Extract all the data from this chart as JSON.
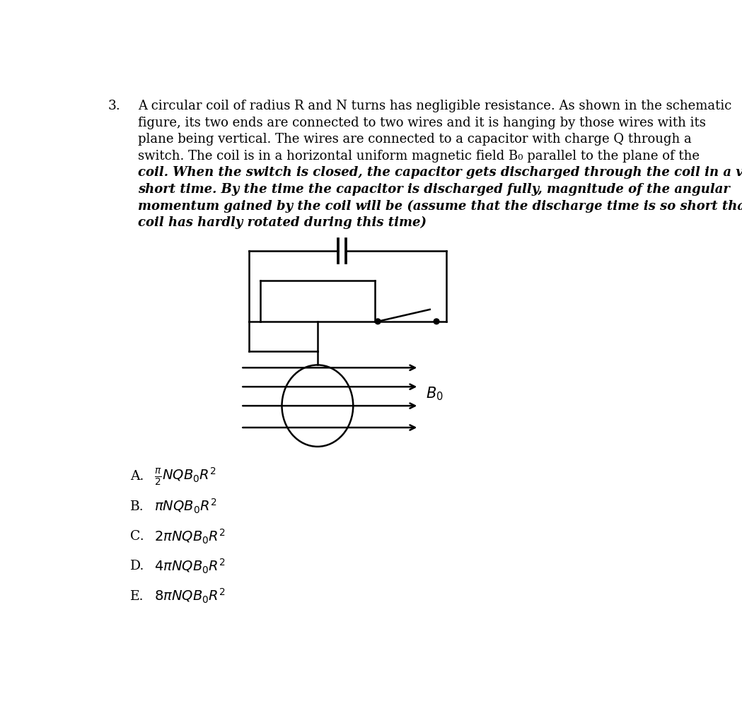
{
  "background_color": "#ffffff",
  "question_number": "3.",
  "question_text_lines": [
    "A circular coil of radius R and N turns has negligible resistance. As shown in the schematic",
    "figure, its two ends are connected to two wires and it is hanging by those wires with its",
    "plane being vertical. The wires are connected to a capacitor with charge Q through a",
    "switch. The coil is in a horizontal uniform magnetic field B₀ parallel to the plane of the",
    "coil. When the switch is closed, the capacitor gets discharged through the coil in a very",
    "short time. By the time the capacitor is discharged fully, magnitude of the angular",
    "momentum gained by the coil will be (assume that the discharge time is so short that the",
    "coil has hardly rotated during this time)"
  ],
  "bold_lines": [
    4,
    5,
    6,
    7
  ],
  "line_color": "#000000",
  "line_width": 1.8,
  "options_labels": [
    "A.",
    "B.",
    "C.",
    "D.",
    "E."
  ],
  "options_math": [
    "$\\frac{\\pi}{2}NQB_0R^2$",
    "$\\pi NQB_0R^2$",
    "$2\\pi NQB_0R^2$",
    "$4\\pi NQB_0R^2$",
    "$8\\pi NQB_0R^2$"
  ]
}
